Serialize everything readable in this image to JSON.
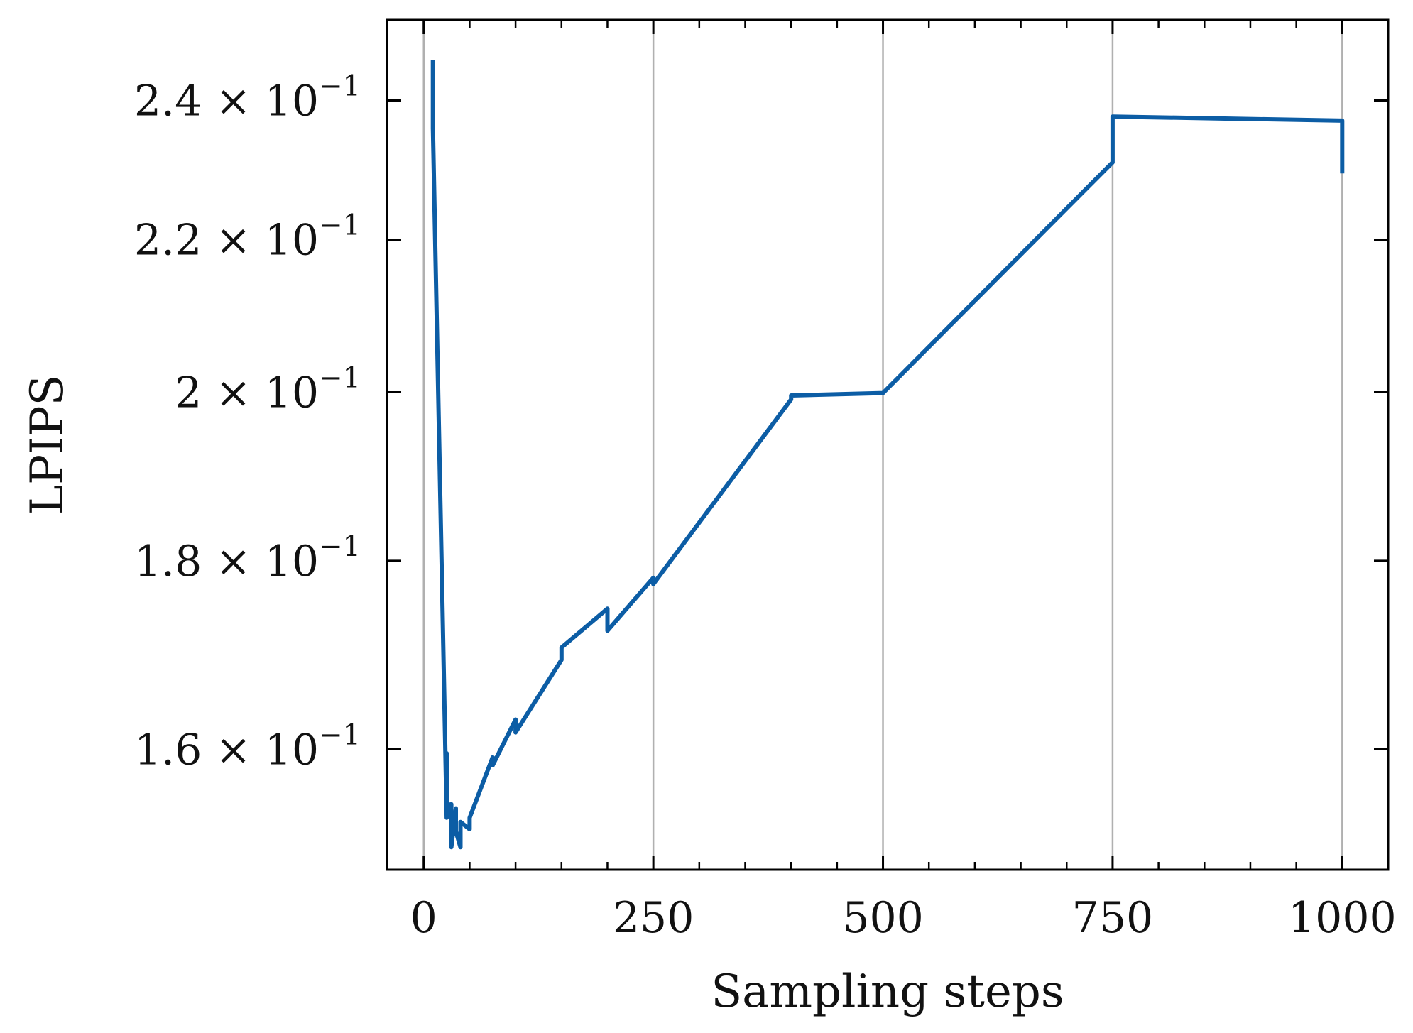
{
  "chart_data": {
    "type": "line",
    "xlabel": "Sampling steps",
    "ylabel": "LPIPS",
    "y_scale": "log",
    "xlim": [
      -40,
      1050
    ],
    "ylim": [
      0.1484,
      0.2524
    ],
    "x_ticks": [
      0,
      250,
      500,
      750,
      1000
    ],
    "x_tick_labels": [
      "0",
      "250",
      "500",
      "750",
      "1000"
    ],
    "x_minor_ticks": [
      50,
      100,
      150,
      200,
      300,
      350,
      400,
      450,
      550,
      600,
      650,
      700,
      800,
      850,
      900,
      950
    ],
    "y_ticks": [
      0.16,
      0.18,
      0.2,
      0.22,
      0.24
    ],
    "y_tick_labels": [
      {
        "mantissa": "1.6",
        "times": "×",
        "base": "10",
        "exponent": "−1"
      },
      {
        "mantissa": "1.8",
        "times": "×",
        "base": "10",
        "exponent": "−1"
      },
      {
        "mantissa": "2",
        "times": "×",
        "base": "10",
        "exponent": "−1"
      },
      {
        "mantissa": "2.2",
        "times": "×",
        "base": "10",
        "exponent": "−1"
      },
      {
        "mantissa": "2.4",
        "times": "×",
        "base": "10",
        "exponent": "−1"
      }
    ],
    "grid": {
      "x": true,
      "y": false
    },
    "series": [
      {
        "color": "#0C5DA5",
        "x": [
          10,
          10,
          25,
          25,
          25,
          30,
          30,
          35,
          35,
          40,
          40,
          50,
          50,
          75,
          75,
          100,
          100,
          150,
          150,
          200,
          200,
          250,
          250,
          400,
          400,
          500,
          750,
          750,
          1000,
          1000
        ],
        "y": [
          0.2462,
          0.2359,
          0.1533,
          0.1596,
          0.1545,
          0.1546,
          0.1505,
          0.1542,
          0.152,
          0.1505,
          0.1529,
          0.1522,
          0.1533,
          0.1592,
          0.1584,
          0.163,
          0.1617,
          0.1692,
          0.1705,
          0.1747,
          0.1723,
          0.1781,
          0.1774,
          0.1991,
          0.1996,
          0.1999,
          0.2309,
          0.2376,
          0.237,
          0.2293
        ]
      }
    ]
  }
}
